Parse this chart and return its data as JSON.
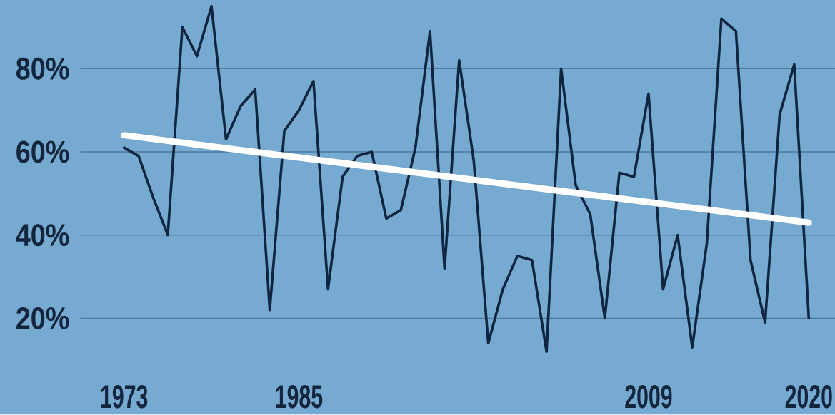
{
  "chart_data": {
    "type": "line",
    "x": [
      1973,
      1974,
      1975,
      1976,
      1977,
      1978,
      1979,
      1980,
      1981,
      1982,
      1983,
      1984,
      1985,
      1986,
      1987,
      1988,
      1989,
      1990,
      1991,
      1992,
      1993,
      1994,
      1995,
      1996,
      1997,
      1998,
      1999,
      2000,
      2001,
      2002,
      2003,
      2004,
      2005,
      2006,
      2007,
      2008,
      2009,
      2010,
      2011,
      2012,
      2013,
      2014,
      2015,
      2016,
      2017,
      2018,
      2019,
      2020
    ],
    "series": [
      {
        "color": "#102640",
        "values": [
          61,
          59,
          49,
          40,
          90,
          83,
          95,
          63,
          71,
          75,
          22,
          65,
          70,
          77,
          27,
          54,
          59,
          60,
          44,
          46,
          61,
          89,
          32,
          82,
          58,
          14,
          27,
          35,
          34,
          12,
          80,
          52,
          45,
          20,
          55,
          54,
          74,
          27,
          40,
          13,
          38,
          92,
          89,
          34,
          19,
          69,
          81,
          20
        ]
      },
      {
        "type": "line",
        "color": "#ffffff",
        "x": [
          1973,
          2020
        ],
        "values": [
          64,
          43
        ]
      }
    ],
    "xlim": [
      1970,
      2021.8
    ],
    "ylim": [
      -3,
      96
    ],
    "xticks": [
      1973,
      1985,
      2009,
      2020
    ],
    "yticks": [
      {
        "value": 20,
        "label": "20%"
      },
      {
        "value": 40,
        "label": "40%"
      },
      {
        "value": 60,
        "label": "60%"
      },
      {
        "value": 80,
        "label": "80%"
      }
    ],
    "grid": "y"
  }
}
